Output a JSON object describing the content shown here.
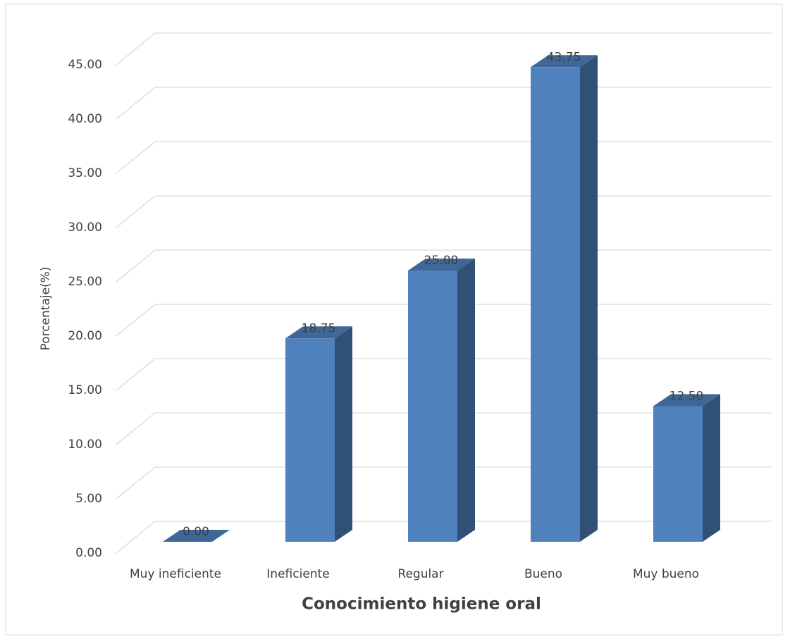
{
  "chart_data": {
    "type": "bar3d",
    "x_label": "Conocimiento higiene oral",
    "y_label": "Porcentaje(%)",
    "categories": [
      "Muy ineficiente",
      "Ineficiente",
      "Regular",
      "Bueno",
      "Muy bueno"
    ],
    "values": [
      0,
      18.75,
      25,
      43.75,
      12.5
    ],
    "value_labels": [
      "0.00",
      "18.75",
      "25.00",
      "43.75",
      "12.50"
    ],
    "color": "#4f81bd",
    "ylim": [
      0,
      45
    ],
    "yticks": [
      {
        "value": 0,
        "label": "0.00"
      },
      {
        "value": 5,
        "label": "5.00"
      },
      {
        "value": 10,
        "label": "10.00"
      },
      {
        "value": 15,
        "label": "15.00"
      },
      {
        "value": 20,
        "label": "20.00"
      },
      {
        "value": 25,
        "label": "25.00"
      },
      {
        "value": 30,
        "label": "30.00"
      },
      {
        "value": 35,
        "label": "35.00"
      },
      {
        "value": 40,
        "label": "40.00"
      },
      {
        "value": 45,
        "label": "45.00"
      }
    ],
    "grid": true
  }
}
